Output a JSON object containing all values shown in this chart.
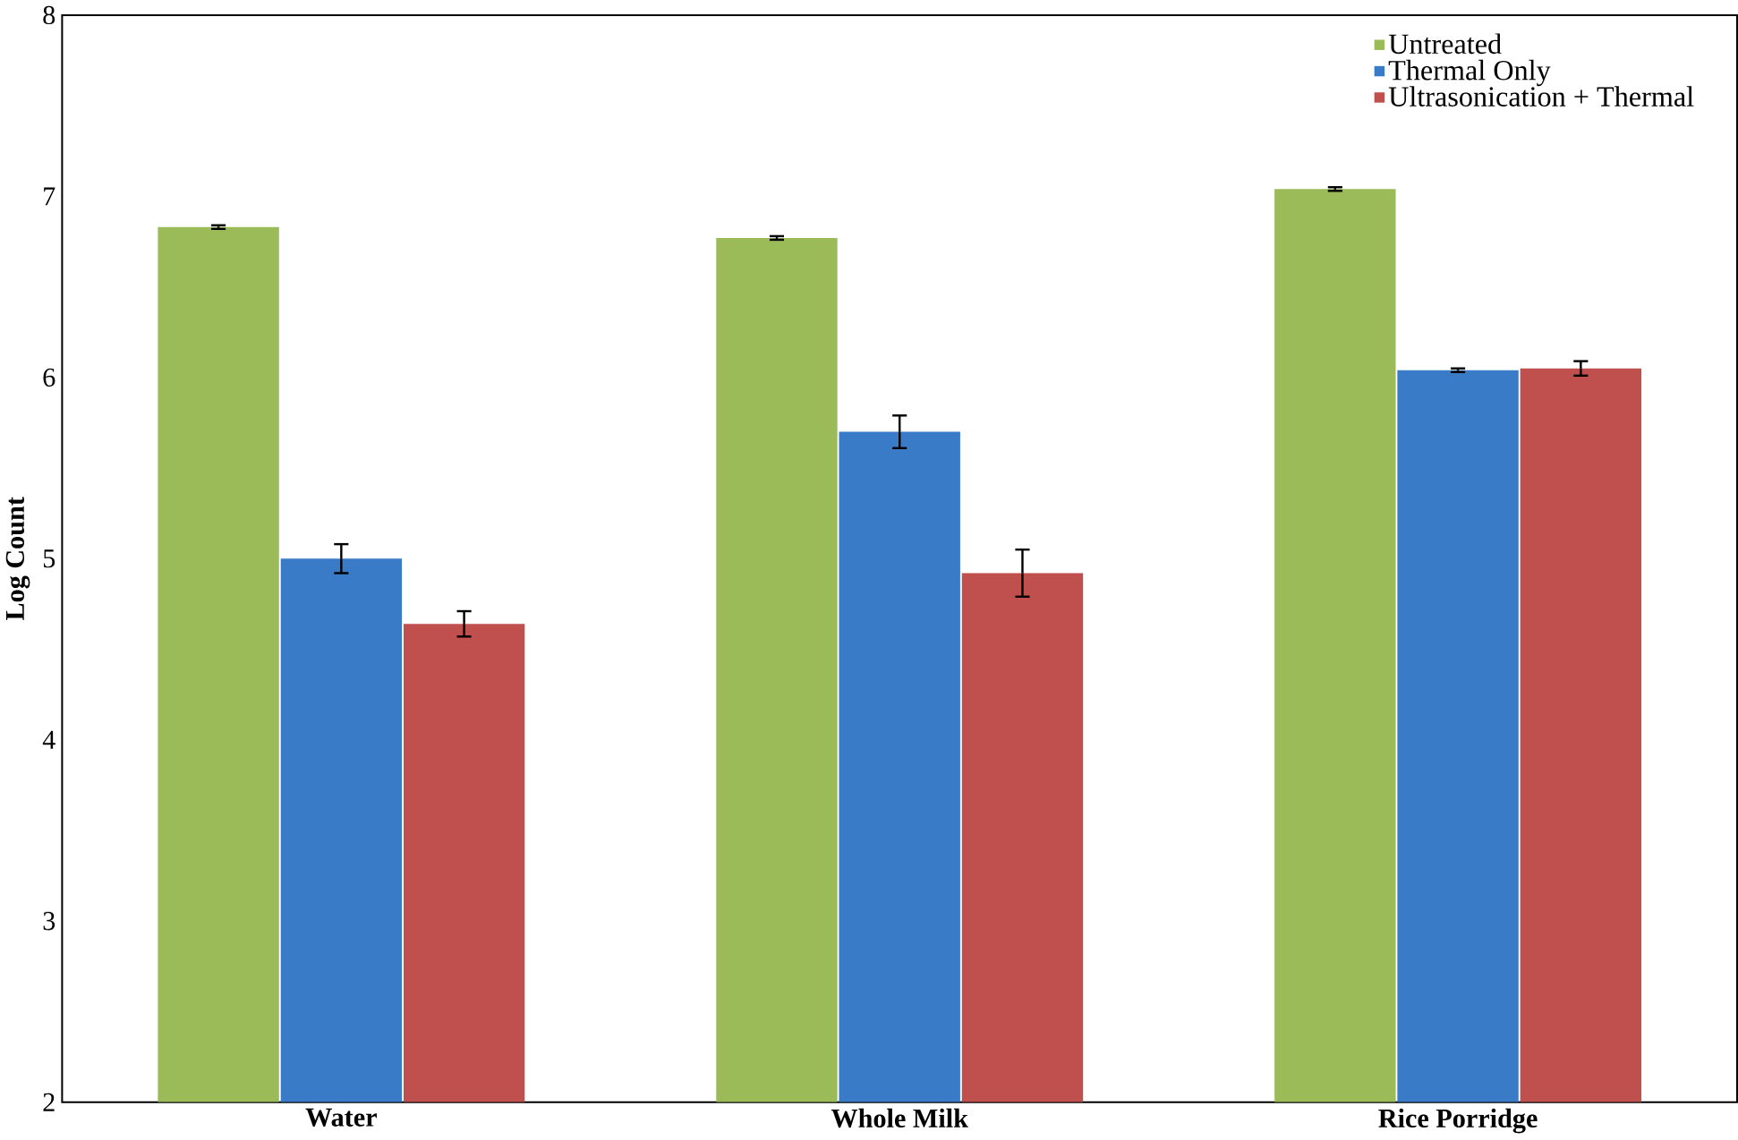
{
  "chart_data": {
    "type": "bar",
    "ylabel": "Log Count",
    "categories": [
      "Water",
      "Whole Milk",
      "Rice Porridge"
    ],
    "series": [
      {
        "name": "Untreated",
        "color": "#9bbb59",
        "values": [
          6.83,
          6.77,
          7.04
        ],
        "errors": [
          0.01,
          0.01,
          0.01
        ]
      },
      {
        "name": "Thermal Only",
        "color": "#3a7bc8",
        "values": [
          5.0,
          5.7,
          6.04
        ],
        "errors": [
          0.08,
          0.09,
          0.01
        ]
      },
      {
        "name": "Ultrasonication + Thermal",
        "color": "#c0504d",
        "values": [
          4.64,
          4.92,
          6.05
        ],
        "errors": [
          0.07,
          0.13,
          0.04
        ]
      }
    ],
    "ylim": [
      2,
      8
    ],
    "yticks": [
      2,
      3,
      4,
      5,
      6,
      7,
      8
    ],
    "legend": "top right",
    "grid": false
  }
}
